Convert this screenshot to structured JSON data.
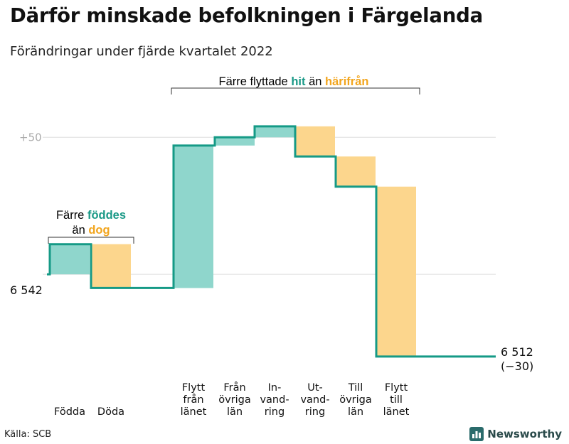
{
  "title": "Därför minskade befolkningen i Färgelanda",
  "subtitle": "Förändringar under fjärde kvartalet 2022",
  "source": "Källa: SCB",
  "brand": "Newsworthy",
  "colors": {
    "in": "#8fd6cc",
    "out": "#fcd68d",
    "line": "#159a86",
    "accent_in": "#1a9987",
    "accent_out": "#f2a51d",
    "grid": "#dddddd",
    "axis_text": "#aaaaaa"
  },
  "annotations": {
    "births_deaths": {
      "line1": "Färre",
      "hl1": "föddes",
      "line2": "än",
      "hl2": "dog"
    },
    "migration": {
      "pre": "Färre flyttade",
      "hl1": "hit",
      "mid": "än",
      "hl2": "härifrån"
    }
  },
  "chart_data": {
    "type": "waterfall",
    "start": 6542,
    "end": 6512,
    "start_label": "6 542",
    "end_label": "6 512",
    "change_label": "(−30)",
    "ylim": [
      6506,
      6611
    ],
    "yticks": [
      {
        "value": 6542,
        "label": ""
      },
      {
        "value": 6592,
        "label": "+50"
      }
    ],
    "categories": [
      "Födda",
      "Döda",
      "Flytt från länet",
      "Från övriga län",
      "Invandring",
      "Utvandring",
      "Till övriga län",
      "Flytt till länet"
    ],
    "category_labels": [
      [
        "Födda"
      ],
      [
        "Döda"
      ],
      [
        "Flytt",
        "från",
        "länet"
      ],
      [
        "Från",
        "övriga",
        "län"
      ],
      [
        "In-",
        "vand-",
        "ring"
      ],
      [
        "Ut-",
        "vand-",
        "ring"
      ],
      [
        "Till",
        "övriga",
        "län"
      ],
      [
        "Flytt",
        "till",
        "länet"
      ]
    ],
    "values": [
      11,
      -16,
      52,
      3,
      4,
      -11,
      -11,
      -62
    ]
  }
}
